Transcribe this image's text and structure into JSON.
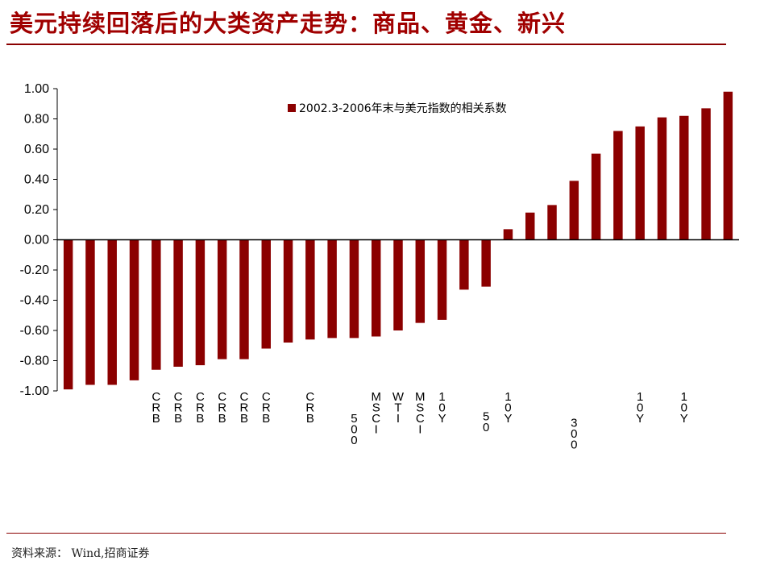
{
  "header": {
    "title": "美元持续回落后的大类资产走势：商品、黄金、新兴"
  },
  "footer": {
    "source": "资料来源： Wind,招商证券"
  },
  "chart_data": {
    "type": "bar",
    "series": [
      {
        "name": "2002.3-2006年末与美元指数的相关系数",
        "color": "#8b0000",
        "values": [
          -0.99,
          -0.96,
          -0.96,
          -0.93,
          -0.86,
          -0.84,
          -0.83,
          -0.79,
          -0.79,
          -0.72,
          -0.68,
          -0.66,
          -0.65,
          -0.65,
          -0.64,
          -0.6,
          -0.55,
          -0.53,
          -0.33,
          -0.31,
          0.07,
          0.18,
          0.23,
          0.39,
          0.57,
          0.72,
          0.75,
          0.81,
          0.82,
          0.87,
          0.98
        ]
      }
    ],
    "categories": [
      "",
      "",
      "",
      "",
      "CRB",
      "CRB",
      "CRB",
      "CRB",
      "CRB",
      "CRB",
      "",
      "CRB",
      "",
      "500",
      "MSCI",
      "WTI",
      "MSCI",
      "10Y",
      "",
      "50",
      "10Y",
      "",
      "",
      "300",
      "",
      "",
      "10Y",
      "",
      "10Y",
      "",
      ""
    ],
    "ylim": [
      -1.0,
      1.0
    ],
    "yticks": [
      "-1.00",
      "-0.80",
      "-0.60",
      "-0.40",
      "-0.20",
      "0.00",
      "0.20",
      "0.40",
      "0.60",
      "0.80",
      "1.00"
    ],
    "legend_position": "top",
    "grid": false
  }
}
